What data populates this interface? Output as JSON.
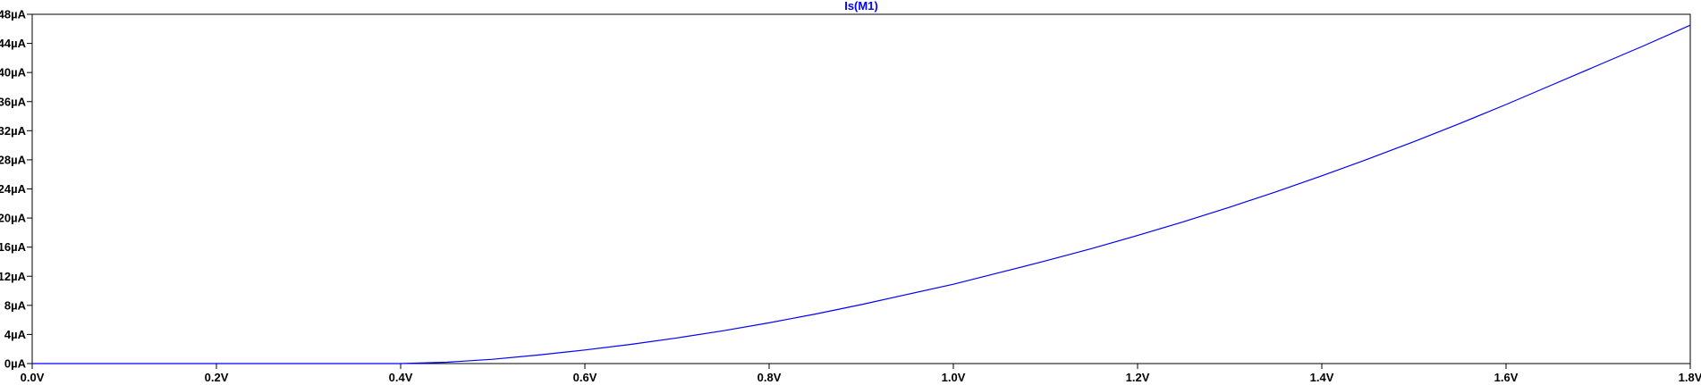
{
  "chart_data": {
    "type": "line",
    "title": "",
    "xlabel": "",
    "ylabel": "",
    "xlim": [
      0.0,
      1.8
    ],
    "ylim": [
      0,
      48
    ],
    "x_ticks": [
      0.0,
      0.2,
      0.4,
      0.6,
      0.8,
      1.0,
      1.2,
      1.4,
      1.6,
      1.8
    ],
    "x_tick_labels": [
      "0.0V",
      "0.2V",
      "0.4V",
      "0.6V",
      "0.8V",
      "1.0V",
      "1.2V",
      "1.4V",
      "1.6V",
      "1.8V"
    ],
    "y_ticks": [
      0,
      4,
      8,
      12,
      16,
      20,
      24,
      28,
      32,
      36,
      40,
      44,
      48
    ],
    "y_tick_labels": [
      "0µA",
      "4µA",
      "8µA",
      "12µA",
      "16µA",
      "20µA",
      "24µA",
      "28µA",
      "32µA",
      "36µA",
      "40µA",
      "44µA",
      "48µA"
    ],
    "grid": false,
    "series": [
      {
        "name": "Is(M1)",
        "color": "#0000ff",
        "x": [
          0.0,
          0.2,
          0.4,
          0.45,
          0.5,
          0.55,
          0.6,
          0.65,
          0.7,
          0.75,
          0.8,
          0.85,
          0.9,
          0.95,
          1.0,
          1.05,
          1.1,
          1.15,
          1.2,
          1.25,
          1.3,
          1.35,
          1.4,
          1.45,
          1.5,
          1.55,
          1.6,
          1.65,
          1.7,
          1.75,
          1.8
        ],
        "y": [
          0.0,
          0.0,
          0.0,
          0.19,
          0.59,
          1.18,
          1.86,
          2.64,
          3.52,
          4.51,
          5.6,
          6.8,
          8.1,
          9.5,
          10.9,
          12.5,
          14.1,
          15.8,
          17.6,
          19.5,
          21.5,
          23.6,
          25.8,
          28.1,
          30.5,
          33.0,
          35.6,
          38.3,
          41.0,
          43.7,
          46.5
        ]
      }
    ]
  }
}
